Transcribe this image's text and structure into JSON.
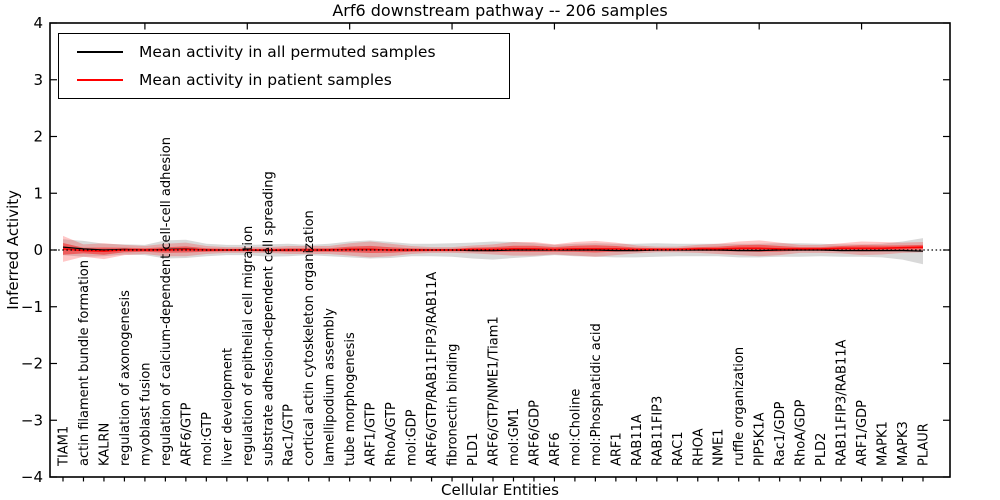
{
  "chart_data": {
    "type": "line",
    "title": "Arf6 downstream pathway -- 206 samples",
    "xlabel": "Cellular Entities",
    "ylabel": "Inferred Activity",
    "ylim": [
      -4,
      4
    ],
    "yticks": [
      4,
      3,
      2,
      1,
      0,
      -1,
      -2,
      -3,
      -4
    ],
    "grid": false,
    "legend_position": "upper left",
    "zero_reference_line": true,
    "categories": [
      "TIAM1",
      "actin filament bundle formation",
      "KALRN",
      "regulation of axonogenesis",
      "myoblast fusion",
      "regulation of calcium-dependent cell-cell adhesion",
      "ARF6/GTP",
      "mol:GTP",
      "liver development",
      "regulation of epithelial cell migration",
      "substrate adhesion-dependent cell spreading",
      "Rac1/GTP",
      "cortical actin cytoskeleton organization",
      "lamellipodium assembly",
      "tube morphogenesis",
      "ARF1/GTP",
      "RhoA/GTP",
      "mol:GDP",
      "ARF6/GTP/RAB11FIP3/RAB11A",
      "fibronectin binding",
      "PLD1",
      "ARF6/GTP/NME1/Tiam1",
      "mol:GM1",
      "ARF6/GDP",
      "ARF6",
      "mol:Choline",
      "mol:Phosphatidic acid",
      "ARF1",
      "RAB11A",
      "RAB11FIP3",
      "RAC1",
      "RHOA",
      "NME1",
      "ruffle organization",
      "PIP5K1A",
      "Rac1/GDP",
      "RhoA/GDP",
      "PLD2",
      "RAB11FIP3/RAB11A",
      "ARF1/GDP",
      "MAPK1",
      "MAPK3",
      "PLAUR"
    ],
    "series": [
      {
        "name": "Mean activity in all permuted samples",
        "color": "#000000",
        "values": [
          0.05,
          0.02,
          0,
          0.01,
          0,
          0.01,
          0.02,
          0,
          0,
          0,
          -0.01,
          0,
          0,
          0,
          0.01,
          0.01,
          0,
          0,
          0,
          0,
          -0.01,
          -0.01,
          0,
          0,
          0,
          0,
          0,
          -0.01,
          -0.01,
          0,
          0,
          0,
          0,
          -0.01,
          -0.01,
          0,
          0,
          0,
          -0.01,
          -0.01,
          -0.01,
          -0.01,
          -0.02
        ],
        "band": [
          0.14,
          0.14,
          0.11,
          0.09,
          0.09,
          0.16,
          0.16,
          0.11,
          0.09,
          0.09,
          0.11,
          0.11,
          0.09,
          0.11,
          0.14,
          0.16,
          0.14,
          0.11,
          0.11,
          0.12,
          0.14,
          0.16,
          0.14,
          0.12,
          0.09,
          0.11,
          0.12,
          0.12,
          0.12,
          0.12,
          0.11,
          0.11,
          0.11,
          0.12,
          0.12,
          0.12,
          0.12,
          0.11,
          0.11,
          0.11,
          0.12,
          0.16,
          0.23
        ]
      },
      {
        "name": "Mean activity in patient samples",
        "color": "#ff0000",
        "values": [
          0.02,
          -0.01,
          -0.02,
          0,
          0,
          0,
          0.01,
          0,
          0,
          0,
          0,
          0,
          0,
          0,
          0.01,
          0.01,
          0,
          0,
          0,
          0,
          0.01,
          0.01,
          0.02,
          0.02,
          0.01,
          0.02,
          0.02,
          0.02,
          0.01,
          0.01,
          0.01,
          0.02,
          0.02,
          0.03,
          0.03,
          0.02,
          0.02,
          0.02,
          0.03,
          0.03,
          0.03,
          0.04,
          0.05
        ],
        "band": [
          0.23,
          0.11,
          0.14,
          0.09,
          0.07,
          0.11,
          0.12,
          0.07,
          0.05,
          0.05,
          0.05,
          0.07,
          0.07,
          0.07,
          0.11,
          0.14,
          0.11,
          0.07,
          0.05,
          0.05,
          0.07,
          0.09,
          0.12,
          0.12,
          0.09,
          0.12,
          0.14,
          0.11,
          0.07,
          0.05,
          0.05,
          0.07,
          0.09,
          0.12,
          0.14,
          0.11,
          0.07,
          0.07,
          0.09,
          0.12,
          0.11,
          0.09,
          0.09
        ]
      }
    ]
  },
  "colors": {
    "permuted_band": "#d9d9d9",
    "patient_band_outer": "#ffc7c7",
    "patient_band_inner": "#ff6d6d",
    "axis": "#000000"
  }
}
